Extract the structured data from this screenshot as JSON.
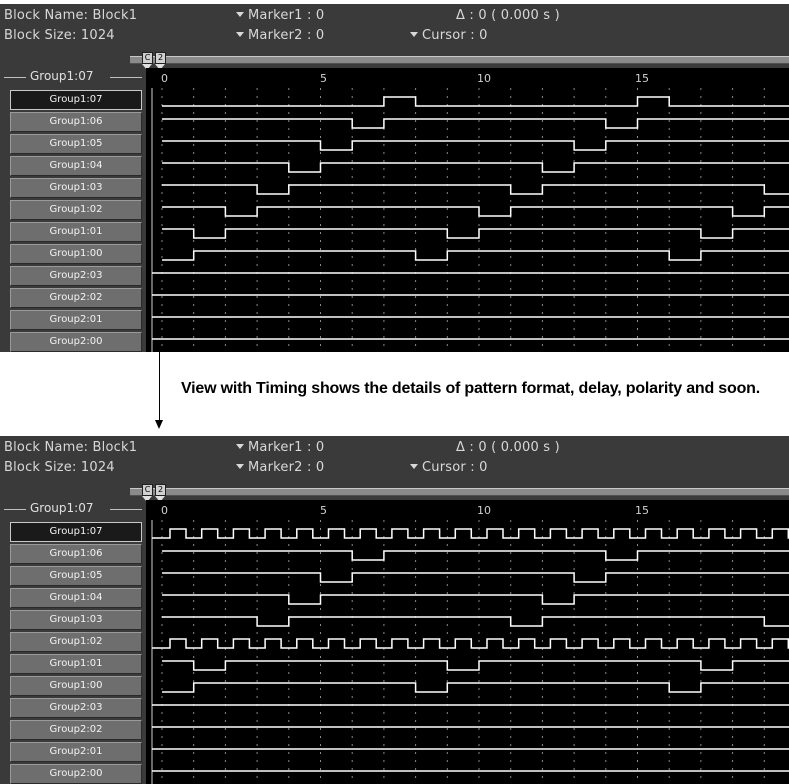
{
  "top_view": {
    "block_name": "Block Name: Block1",
    "block_size": "Block Size: 1024",
    "marker1": "Marker1 : 0",
    "marker2": "Marker2 : 0",
    "delta": "Δ : 0  ( 0.000  s )",
    "cursor": "Cursor : 0",
    "marker_c": "C",
    "marker_2": "2",
    "group_header": "Group1:07",
    "ticks": [
      "0",
      "5",
      "10",
      "15"
    ],
    "rows": [
      "Group1:07",
      "Group1:06",
      "Group1:05",
      "Group1:04",
      "Group1:03",
      "Group1:02",
      "Group1:01",
      "Group1:00",
      "Group2:03",
      "Group2:02",
      "Group2:01",
      "Group2:00"
    ],
    "selected_row": "Group1:07"
  },
  "caption": "View with Timing shows the details of pattern format, delay, polarity and soon.",
  "bottom_view": {
    "block_name": "Block Name: Block1",
    "block_size": "Block Size: 1024",
    "marker1": "Marker1 : 0",
    "marker2": "Marker2 : 0",
    "delta": "Δ : 0  ( 0.000  s )",
    "cursor": "Cursor : 0",
    "marker_c": "C",
    "marker_2": "2",
    "group_header": "Group1:07",
    "ticks": [
      "0",
      "5",
      "10",
      "15"
    ],
    "rows": [
      "Group1:07",
      "Group1:06",
      "Group1:05",
      "Group1:04",
      "Group1:03",
      "Group1:02",
      "Group1:01",
      "Group1:00",
      "Group2:03",
      "Group2:02",
      "Group2:01",
      "Group2:00"
    ],
    "selected_row": "Group1:07"
  },
  "colors": {
    "panel_bg": "#3a3a3a",
    "wave_bg": "#000000",
    "trace": "#ffffff",
    "label_bg": "#6e6e6e",
    "selected_label_bg": "#1a1a1a"
  }
}
